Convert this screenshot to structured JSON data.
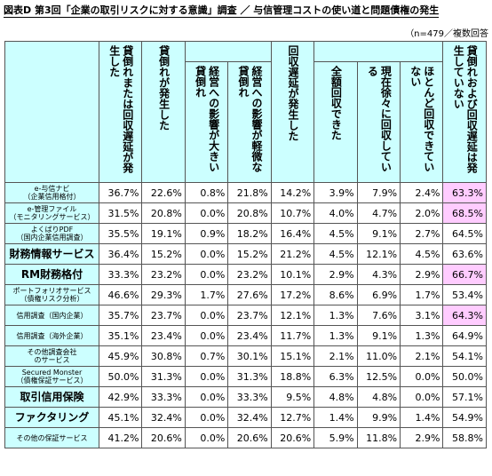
{
  "header": {
    "title": "図表D 第3回「企業の取引リスクに対する意識」調査 ／ 与信管理コストの使い道と問題債権の発生",
    "note": "（n=479／複数回答"
  },
  "table": {
    "columns": [
      "貸倒れまたは回収遅延が発生した",
      "貸倒れが発生した",
      "経営への影響が大きい貸倒れ",
      "経営への影響が軽微な貸倒れ",
      "回収遅延が発生した",
      "全額回収できた",
      "現在徐々に回収している",
      "ほとんど回収できていない",
      "貸倒れおよび回収遅延は発生していない"
    ],
    "rows": [
      {
        "label": "e-与信ナビ",
        "sub": "（企業信用格付）",
        "values": [
          "36.7%",
          "22.6%",
          "0.8%",
          "21.8%",
          "14.2%",
          "3.9%",
          "7.9%",
          "2.4%",
          "63.3%"
        ],
        "highlight": true
      },
      {
        "label": "e-管理ファイル",
        "sub": "（モニタリングサービス）",
        "values": [
          "31.5%",
          "20.8%",
          "0.0%",
          "20.8%",
          "10.7%",
          "4.0%",
          "4.7%",
          "2.0%",
          "68.5%"
        ],
        "highlight": true
      },
      {
        "label": "よくばりPDF",
        "sub": "（国内企業信用調査）",
        "values": [
          "35.5%",
          "19.1%",
          "0.9%",
          "18.2%",
          "16.4%",
          "4.5%",
          "9.1%",
          "2.7%",
          "64.5%"
        ],
        "highlight": false
      },
      {
        "label": "財務情報サービス",
        "values": [
          "36.4%",
          "15.2%",
          "0.0%",
          "15.2%",
          "21.2%",
          "4.5%",
          "12.1%",
          "4.5%",
          "63.6%"
        ],
        "highlight": false
      },
      {
        "label": "RM財務格付",
        "values": [
          "33.3%",
          "23.2%",
          "0.0%",
          "23.2%",
          "10.1%",
          "2.9%",
          "4.3%",
          "2.9%",
          "66.7%"
        ],
        "highlight": true
      },
      {
        "label": "ポートフォリオサービス",
        "sub": "（債権リスク分析）",
        "values": [
          "46.6%",
          "29.3%",
          "1.7%",
          "27.6%",
          "17.2%",
          "8.6%",
          "6.9%",
          "1.7%",
          "53.4%"
        ],
        "highlight": false
      },
      {
        "label": "信用調査（国内企業）",
        "values": [
          "35.7%",
          "23.7%",
          "0.0%",
          "23.7%",
          "12.1%",
          "1.3%",
          "7.6%",
          "3.1%",
          "64.3%"
        ],
        "highlight": true
      },
      {
        "label": "信用調査（海外企業）",
        "values": [
          "35.1%",
          "23.4%",
          "0.0%",
          "23.4%",
          "11.7%",
          "1.3%",
          "9.1%",
          "1.3%",
          "64.9%"
        ],
        "highlight": false
      },
      {
        "label": "その他調査会社",
        "sub": "のサービス",
        "values": [
          "45.9%",
          "30.8%",
          "0.7%",
          "30.1%",
          "15.1%",
          "2.1%",
          "11.0%",
          "2.1%",
          "54.1%"
        ],
        "highlight": false
      },
      {
        "label": "Secured Monster",
        "sub": "（債権保証サービス）",
        "values": [
          "50.0%",
          "31.3%",
          "0.0%",
          "31.3%",
          "18.8%",
          "6.3%",
          "12.5%",
          "0.0%",
          "50.0%"
        ],
        "highlight": false
      },
      {
        "label": "取引信用保険",
        "values": [
          "42.9%",
          "33.3%",
          "0.0%",
          "33.3%",
          "9.5%",
          "4.8%",
          "4.8%",
          "0.0%",
          "57.1%"
        ],
        "highlight": false
      },
      {
        "label": "ファクタリング",
        "values": [
          "45.1%",
          "32.4%",
          "0.0%",
          "32.4%",
          "12.7%",
          "1.4%",
          "9.9%",
          "1.4%",
          "54.9%"
        ],
        "highlight": false
      },
      {
        "label": "その他の保証サービス",
        "values": [
          "41.2%",
          "20.6%",
          "0.0%",
          "20.6%",
          "20.6%",
          "5.9%",
          "11.8%",
          "2.9%",
          "58.8%"
        ],
        "highlight": false
      }
    ]
  }
}
